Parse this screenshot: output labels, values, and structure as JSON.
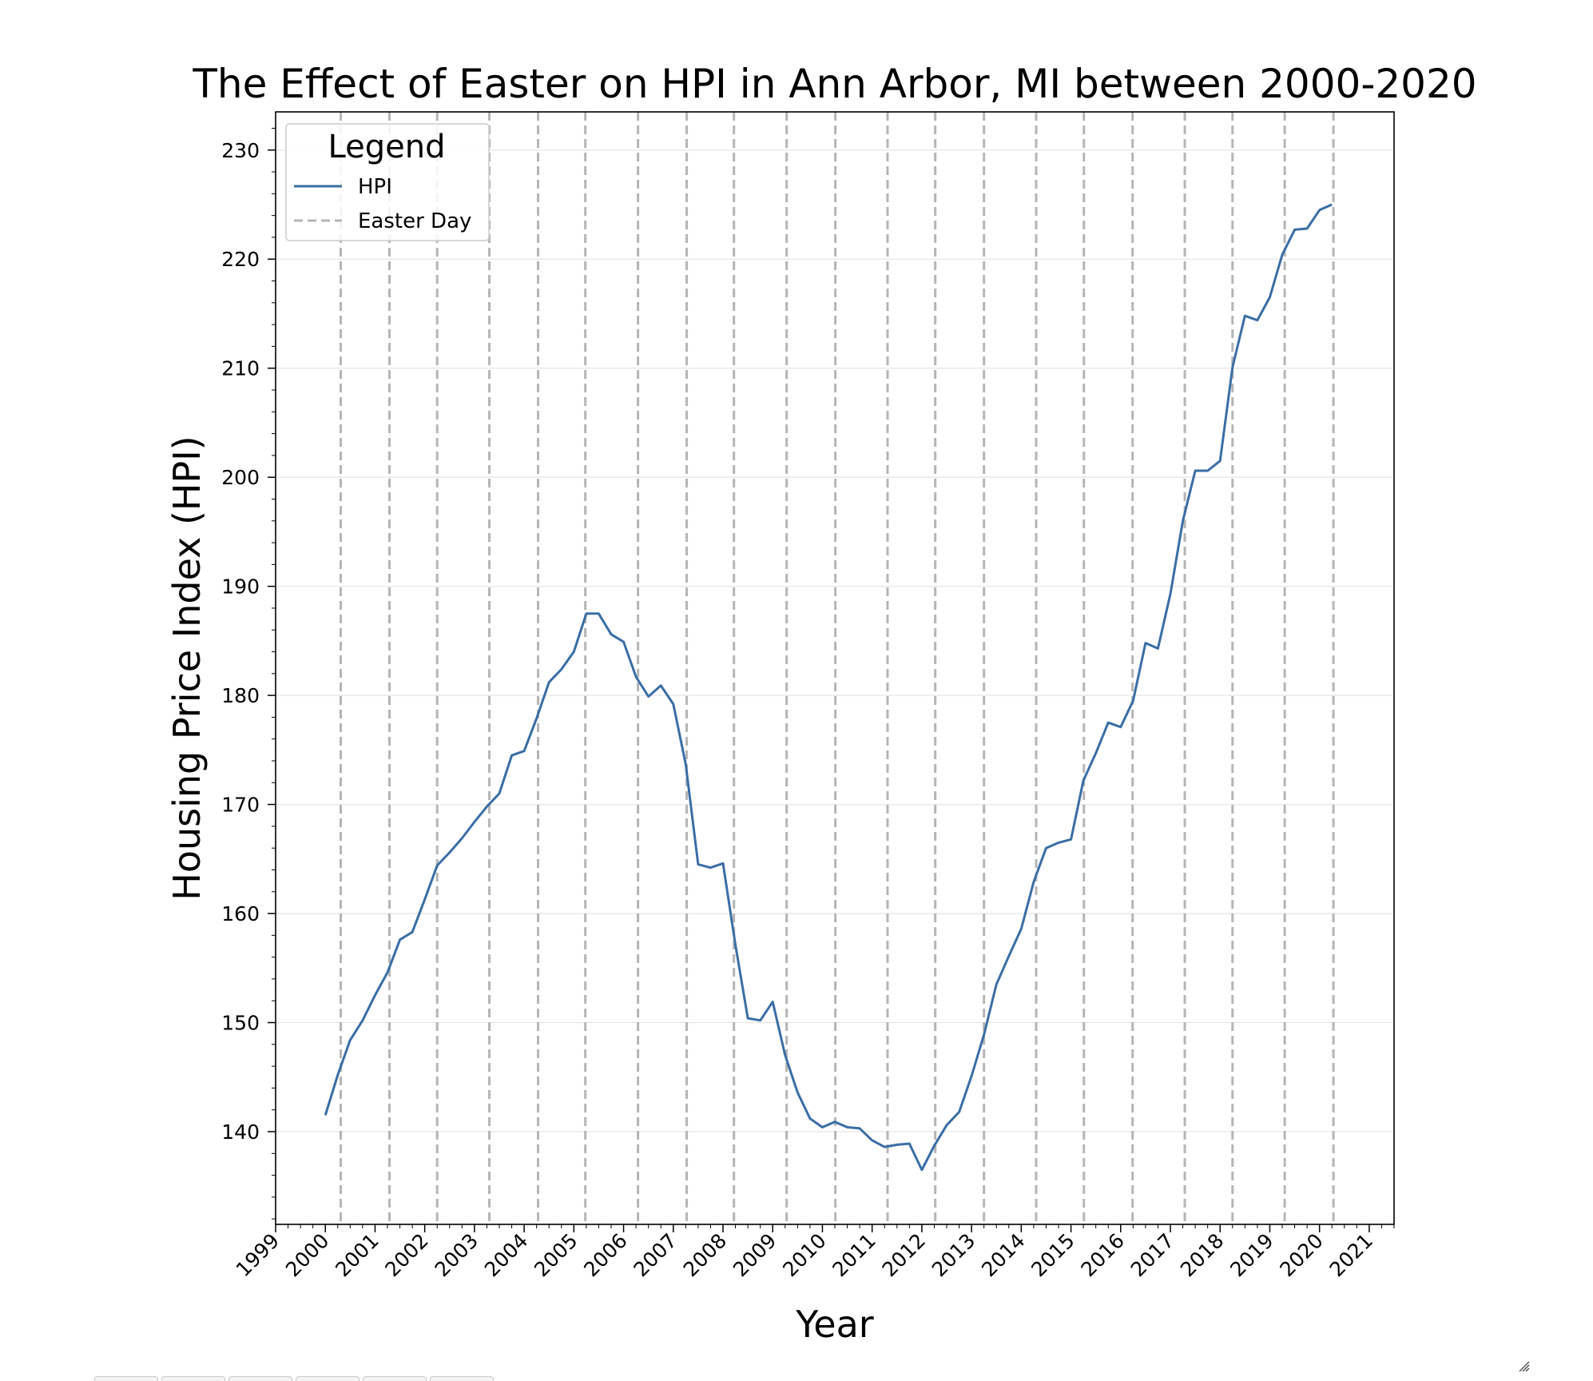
{
  "chart_data": {
    "type": "line",
    "title": "The Effect of Easter on HPI in Ann Arbor, MI between 2000-2020",
    "xlabel": "Year",
    "ylabel": "Housing Price Index (HPI)",
    "xlim": [
      1999,
      2021.5
    ],
    "ylim": [
      131.5,
      233.5
    ],
    "xticks": [
      "1999",
      "2000",
      "2001",
      "2002",
      "2003",
      "2004",
      "2005",
      "2006",
      "2007",
      "2008",
      "2009",
      "2010",
      "2011",
      "2012",
      "2013",
      "2014",
      "2015",
      "2016",
      "2017",
      "2018",
      "2019",
      "2020",
      "2021"
    ],
    "yticks": [
      "140",
      "150",
      "160",
      "170",
      "180",
      "190",
      "200",
      "210",
      "220",
      "230"
    ],
    "grid": "horizontal",
    "legend": {
      "title": "Legend",
      "placement": "upper-left",
      "entries": [
        "HPI",
        "Easter Day"
      ]
    },
    "series": [
      {
        "name": "HPI",
        "color": "#3a6ea5",
        "x": [
          2000.0,
          2000.25,
          2000.5,
          2000.75,
          2001.0,
          2001.25,
          2001.5,
          2001.75,
          2002.0,
          2002.25,
          2002.5,
          2002.75,
          2003.0,
          2003.25,
          2003.5,
          2003.75,
          2004.0,
          2004.25,
          2004.5,
          2004.75,
          2005.0,
          2005.25,
          2005.5,
          2005.75,
          2006.0,
          2006.25,
          2006.5,
          2006.75,
          2007.0,
          2007.25,
          2007.5,
          2007.75,
          2008.0,
          2008.25,
          2008.5,
          2008.75,
          2009.0,
          2009.25,
          2009.5,
          2009.75,
          2010.0,
          2010.25,
          2010.5,
          2010.75,
          2011.0,
          2011.25,
          2011.5,
          2011.75,
          2012.0,
          2012.25,
          2012.5,
          2012.75,
          2013.0,
          2013.25,
          2013.5,
          2013.75,
          2014.0,
          2014.25,
          2014.5,
          2014.75,
          2015.0,
          2015.25,
          2015.5,
          2015.75,
          2016.0,
          2016.25,
          2016.5,
          2016.75,
          2017.0,
          2017.25,
          2017.5,
          2017.75,
          2018.0,
          2018.25,
          2018.5,
          2018.75,
          2019.0,
          2019.25,
          2019.5,
          2019.75,
          2020.0,
          2020.25
        ],
        "values": [
          141.5,
          145.2,
          148.4,
          150.2,
          152.5,
          154.6,
          157.6,
          158.3,
          161.3,
          164.4,
          165.6,
          166.9,
          168.4,
          169.8,
          171.0,
          174.5,
          174.9,
          177.9,
          181.2,
          182.4,
          184.0,
          187.5,
          187.5,
          185.6,
          184.9,
          181.7,
          179.9,
          180.9,
          179.2,
          173.7,
          164.5,
          164.2,
          164.6,
          157.1,
          150.4,
          150.2,
          151.9,
          147.0,
          143.6,
          141.2,
          140.4,
          140.9,
          140.4,
          140.3,
          139.2,
          138.6,
          138.8,
          138.9,
          136.5,
          138.7,
          140.6,
          141.8,
          145.1,
          148.9,
          153.5,
          156.1,
          158.6,
          162.9,
          166.0,
          166.5,
          166.8,
          172.2,
          174.7,
          177.5,
          177.1,
          179.5,
          184.8,
          184.3,
          189.3,
          196.0,
          200.6,
          200.6,
          201.5,
          210.1,
          214.8,
          214.4,
          216.5,
          220.4,
          222.7,
          222.8,
          224.5,
          225.0
        ]
      }
    ],
    "easter_days": [
      "2000-04-23",
      "2001-04-15",
      "2002-03-31",
      "2003-04-20",
      "2004-04-11",
      "2005-03-27",
      "2006-04-16",
      "2007-04-08",
      "2008-03-23",
      "2009-04-12",
      "2010-04-04",
      "2011-04-24",
      "2012-04-08",
      "2013-03-31",
      "2014-04-20",
      "2015-04-05",
      "2016-03-27",
      "2017-04-16",
      "2018-04-01",
      "2019-04-21",
      "2020-04-12"
    ],
    "easter_x": [
      2000.31,
      2001.29,
      2002.25,
      2003.3,
      2004.28,
      2005.23,
      2006.29,
      2007.27,
      2008.22,
      2009.28,
      2010.26,
      2011.31,
      2012.27,
      2013.25,
      2014.3,
      2015.26,
      2016.24,
      2017.29,
      2018.25,
      2019.3,
      2020.28
    ],
    "colors": {
      "line": "#3a6ea5",
      "easter_line": "#b5b5b5",
      "grid": "#e6e6e6"
    }
  }
}
